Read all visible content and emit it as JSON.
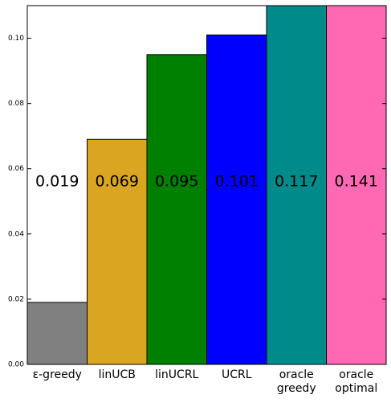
{
  "chart_data": {
    "type": "bar",
    "categories": [
      "ε-greedy",
      "linUCB",
      "linUCRL",
      "UCRL",
      "oracle\ngreedy",
      "oracle\noptimal"
    ],
    "values": [
      0.019,
      0.069,
      0.095,
      0.101,
      0.117,
      0.141
    ],
    "value_labels": [
      "0.019",
      "0.069",
      "0.095",
      "0.101",
      "0.117",
      "0.141"
    ],
    "colors": [
      "#808080",
      "#DAA520",
      "#008000",
      "#0000FF",
      "#008B8B",
      "#FF69B4"
    ],
    "ylim": [
      0,
      0.11
    ],
    "yticks": [
      0.0,
      0.02,
      0.04,
      0.06,
      0.08,
      0.1
    ],
    "ytick_labels": [
      "0.00",
      "0.02",
      "0.04",
      "0.06",
      "0.08",
      "0.10"
    ],
    "value_label_y": 0.056,
    "grid": false,
    "title": "",
    "xlabel": "",
    "ylabel": ""
  }
}
